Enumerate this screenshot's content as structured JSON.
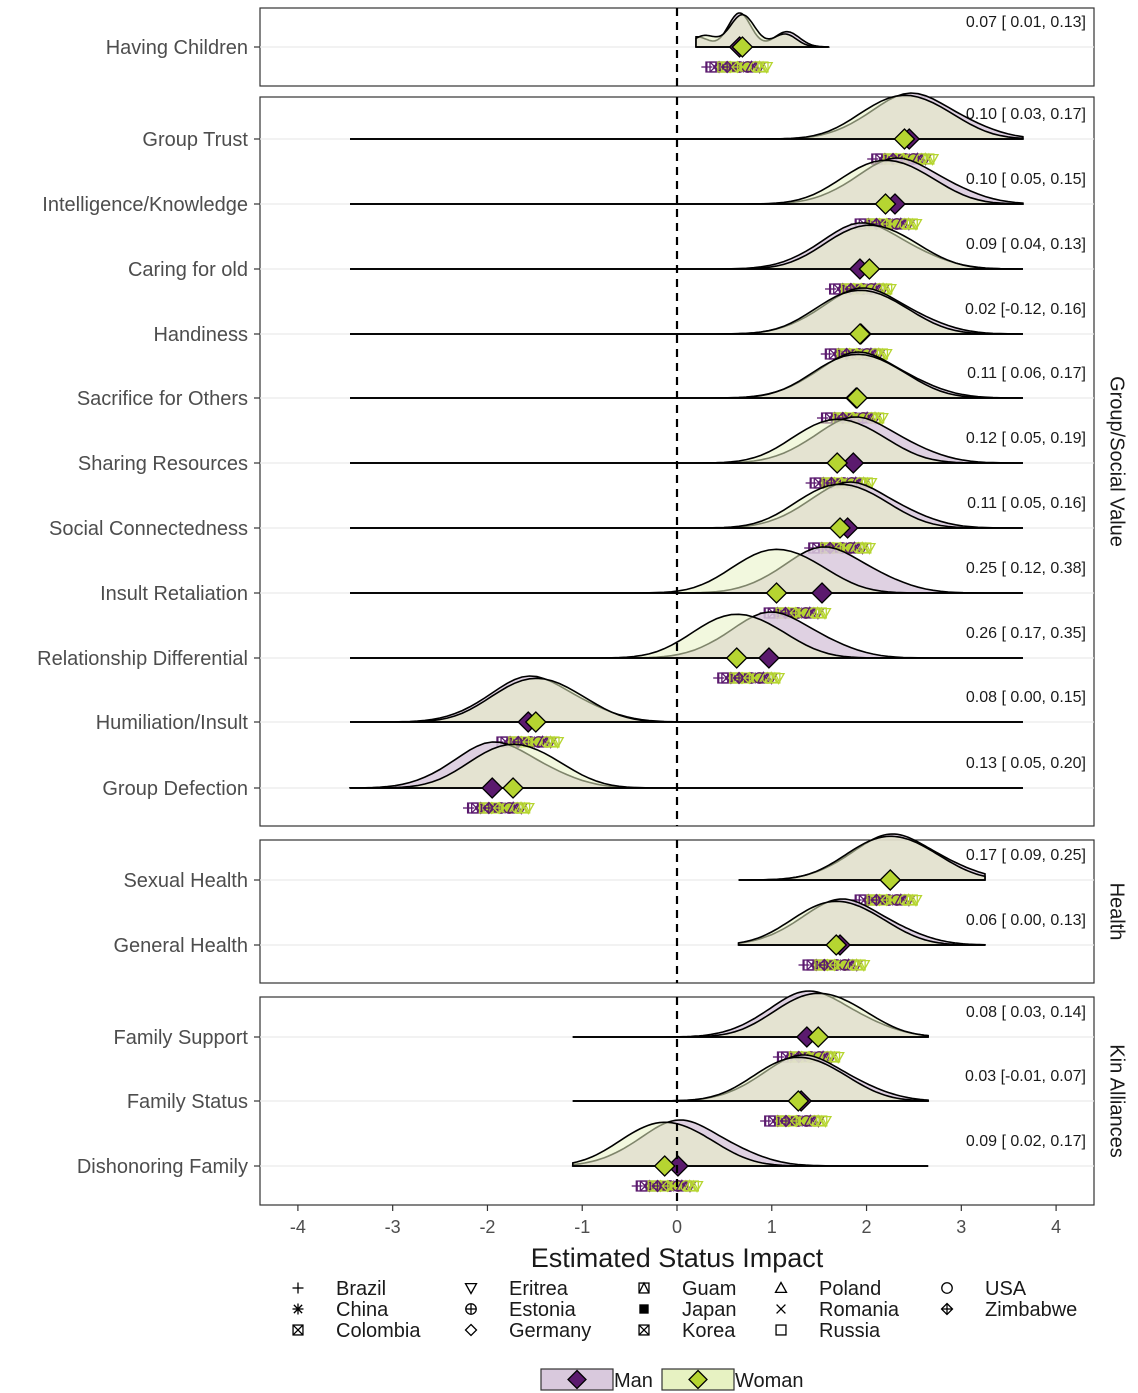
{
  "colors": {
    "man": "#5b1a6e",
    "woman": "#b6d531",
    "man_fill": "#d9c9dd",
    "woman_fill": "#e7f2c2",
    "overlap_fill": "#c8c9a4"
  },
  "chart_data": {
    "type": "ridgeline",
    "xlabel": "Estimated Status Impact",
    "xlim": [
      -4.4,
      4.4
    ],
    "xticks": [
      -4,
      -3,
      -2,
      -1,
      0,
      1,
      2,
      3,
      4
    ],
    "xtick_labels": [
      "-4",
      "-3",
      "-2",
      "-1",
      "0",
      "1",
      "2",
      "3",
      "4"
    ],
    "reference_line": 0,
    "series": [
      {
        "name": "Man"
      },
      {
        "name": "Woman"
      }
    ],
    "country_legend": [
      {
        "name": "Brazil",
        "symbol": "plus"
      },
      {
        "name": "China",
        "symbol": "asterisk"
      },
      {
        "name": "Colombia",
        "symbol": "square-x"
      },
      {
        "name": "Eritrea",
        "symbol": "triangle-down"
      },
      {
        "name": "Estonia",
        "symbol": "circle-plus"
      },
      {
        "name": "Germany",
        "symbol": "diamond"
      },
      {
        "name": "Guam",
        "symbol": "square-triangle"
      },
      {
        "name": "Japan",
        "symbol": "square-filled"
      },
      {
        "name": "Korea",
        "symbol": "square-x"
      },
      {
        "name": "Poland",
        "symbol": "triangle-up"
      },
      {
        "name": "Romania",
        "symbol": "cross"
      },
      {
        "name": "Russia",
        "symbol": "square"
      },
      {
        "name": "USA",
        "symbol": "circle"
      },
      {
        "name": "Zimbabwe",
        "symbol": "diamond-plus"
      }
    ],
    "panels": [
      {
        "strip": "",
        "range": [
          0.2,
          1.6
        ],
        "rows": [
          {
            "label": "Having Children",
            "ci": "0.07 [ 0.01, 0.13]",
            "man": 0.66,
            "woman": 0.69
          }
        ]
      },
      {
        "strip": "Group/Social Value",
        "range": [
          -3.45,
          3.65
        ],
        "rows": [
          {
            "label": "Group Trust",
            "ci": "0.10 [ 0.03, 0.17]",
            "man": 2.45,
            "woman": 2.4
          },
          {
            "label": "Intelligence/Knowledge",
            "ci": "0.10 [ 0.05, 0.15]",
            "man": 2.3,
            "woman": 2.2
          },
          {
            "label": "Caring for old",
            "ci": "0.09 [ 0.04, 0.13]",
            "man": 1.93,
            "woman": 2.03
          },
          {
            "label": "Handiness",
            "ci": "0.02 [-0.12, 0.16]",
            "man": 1.94,
            "woman": 1.93
          },
          {
            "label": "Sacrifice for Others",
            "ci": "0.11 [ 0.06, 0.17]",
            "man": 1.89,
            "woman": 1.9
          },
          {
            "label": "Sharing Resources",
            "ci": "0.12 [ 0.05, 0.19]",
            "man": 1.86,
            "woman": 1.69
          },
          {
            "label": "Social Connectedness",
            "ci": "0.11 [ 0.05, 0.16]",
            "man": 1.8,
            "woman": 1.72
          },
          {
            "label": "Insult Retaliation",
            "ci": "0.25 [ 0.12, 0.38]",
            "man": 1.53,
            "woman": 1.05
          },
          {
            "label": "Relationship Differential",
            "ci": "0.26 [ 0.17, 0.35]",
            "man": 0.97,
            "woman": 0.63
          },
          {
            "label": "Humiliation/Insult",
            "ci": "0.08 [ 0.00, 0.15]",
            "man": -1.57,
            "woman": -1.49
          },
          {
            "label": "Group Defection",
            "ci": "0.13 [ 0.05, 0.20]",
            "man": -1.95,
            "woman": -1.73
          }
        ]
      },
      {
        "strip": "Health",
        "range": [
          0.65,
          3.25
        ],
        "rows": [
          {
            "label": "Sexual Health",
            "ci": "0.17 [ 0.09, 0.25]",
            "man": 2.25,
            "woman": 2.25
          },
          {
            "label": "General Health",
            "ci": "0.06 [ 0.00, 0.13]",
            "man": 1.72,
            "woman": 1.68
          }
        ]
      },
      {
        "strip": "Kin Alliances",
        "range": [
          -1.1,
          2.65
        ],
        "rows": [
          {
            "label": "Family Support",
            "ci": "0.08 [ 0.03, 0.14]",
            "man": 1.37,
            "woman": 1.49
          },
          {
            "label": "Family Status",
            "ci": "0.03 [-0.01, 0.07]",
            "man": 1.31,
            "woman": 1.28
          },
          {
            "label": "Dishonoring Family",
            "ci": "0.09 [ 0.02, 0.17]",
            "man": 0.01,
            "woman": -0.13
          }
        ]
      }
    ]
  }
}
